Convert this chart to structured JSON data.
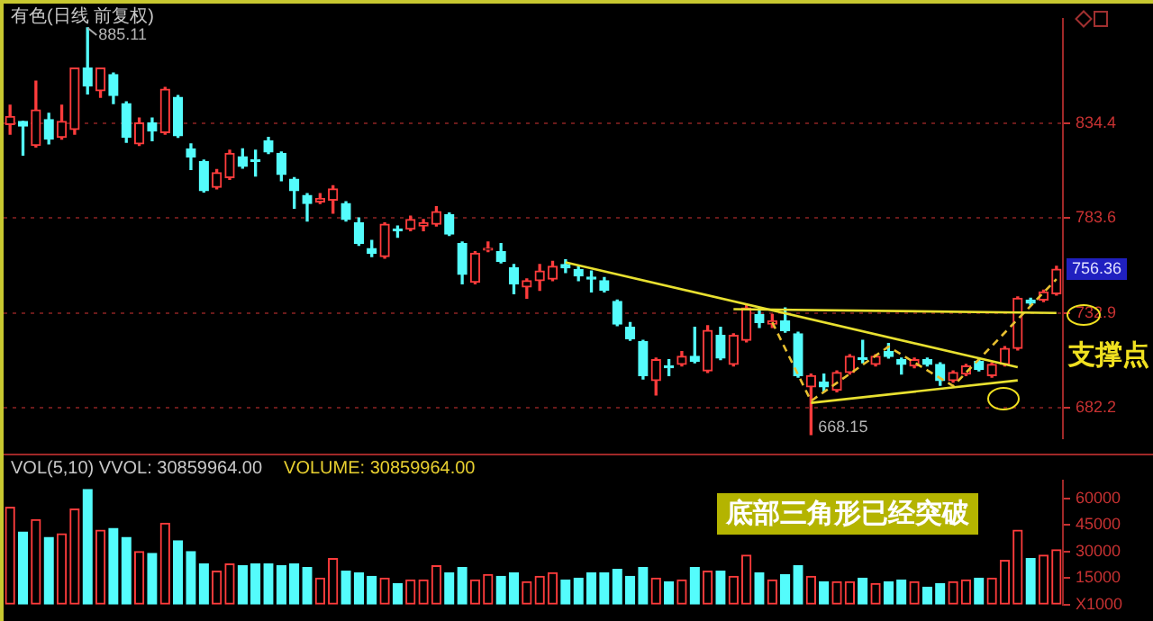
{
  "chart_data": [
    {
      "type": "candlestick",
      "title": "有色(日线 前复权)",
      "tick_labels": "y",
      "grid": "y",
      "categories": [
        null,
        null,
        null,
        null,
        null,
        null,
        null,
        null,
        null,
        null,
        null,
        null,
        null,
        null,
        null,
        null,
        null,
        null,
        null,
        null,
        null,
        null,
        null,
        null,
        null,
        null,
        null,
        null,
        null,
        null,
        null,
        null,
        null,
        null,
        null,
        null,
        null,
        null,
        null,
        null,
        null,
        null,
        null,
        null,
        null,
        null,
        null,
        null,
        null,
        null,
        null,
        null,
        null,
        null,
        null,
        null,
        null,
        null,
        null,
        null,
        null,
        null,
        null,
        null,
        null,
        null,
        null,
        null,
        null,
        null,
        null,
        null,
        null,
        null,
        null,
        null,
        null,
        null,
        null,
        null,
        null,
        null
      ],
      "ohlc": [
        [
          833.5,
          843.8,
          828.4,
          837.8
        ],
        [
          835.2,
          835.2,
          817.2,
          832.7
        ],
        [
          822.4,
          856.7,
          821.5,
          841.3
        ],
        [
          836.1,
          839.5,
          823.2,
          825.8
        ],
        [
          826.7,
          843.8,
          825.8,
          835.2
        ],
        [
          830.9,
          863.6,
          828.4,
          863.6
        ],
        [
          863.6,
          885.11,
          849.9,
          854.1
        ],
        [
          851.6,
          863.6,
          848.1,
          863.6
        ],
        [
          860.2,
          861.0,
          844.7,
          849.0
        ],
        [
          844.7,
          845.6,
          824.1,
          826.7
        ],
        [
          823.2,
          837.0,
          822.4,
          834.4
        ],
        [
          834.4,
          837.0,
          824.9,
          830.1
        ],
        [
          829.2,
          853.3,
          828.4,
          852.4
        ],
        [
          848.1,
          849.0,
          826.7,
          827.5
        ],
        [
          820.6,
          823.2,
          809.5,
          816.3
        ],
        [
          813.8,
          814.6,
          797.5,
          798.3
        ],
        [
          800.0,
          809.5,
          799.2,
          807.8
        ],
        [
          805.2,
          819.8,
          804.3,
          818.1
        ],
        [
          816.3,
          820.6,
          810.3,
          811.2
        ],
        [
          814.6,
          819.8,
          806.0,
          813.8
        ],
        [
          824.9,
          826.7,
          818.1,
          818.9
        ],
        [
          818.1,
          818.9,
          803.5,
          806.9
        ],
        [
          804.3,
          805.2,
          788.9,
          798.3
        ],
        [
          795.7,
          796.6,
          782.0,
          791.4
        ],
        [
          792.3,
          796.6,
          791.4,
          794.0
        ],
        [
          793.2,
          800.9,
          786.3,
          799.2
        ],
        [
          791.4,
          792.3,
          782.0,
          782.9
        ],
        [
          781.1,
          783.7,
          769.1,
          770.0
        ],
        [
          767.4,
          771.7,
          763.1,
          764.8
        ],
        [
          763.1,
          781.1,
          762.2,
          780.3
        ],
        [
          777.7,
          779.4,
          773.4,
          776.9
        ],
        [
          777.7,
          784.6,
          776.9,
          782.9
        ],
        [
          779.4,
          782.9,
          776.9,
          781.1
        ],
        [
          780.3,
          789.7,
          779.4,
          787.1
        ],
        [
          785.4,
          786.3,
          774.3,
          775.1
        ],
        [
          770.0,
          770.8,
          748.5,
          753.6
        ],
        [
          749.4,
          765.7,
          748.5,
          764.8
        ],
        [
          766.5,
          770.8,
          765.7,
          767.4
        ],
        [
          765.7,
          770.0,
          759.7,
          760.5
        ],
        [
          757.1,
          758.8,
          743.3,
          748.5
        ],
        [
          746.8,
          751.1,
          740.8,
          750.2
        ],
        [
          750.2,
          758.8,
          745.1,
          755.4
        ],
        [
          751.1,
          760.5,
          750.2,
          757.9
        ],
        [
          758.8,
          761.4,
          754.5,
          757.1
        ],
        [
          756.2,
          757.9,
          750.2,
          752.8
        ],
        [
          751.9,
          755.4,
          744.2,
          751.1
        ],
        [
          750.2,
          751.9,
          744.2,
          745.1
        ],
        [
          739.1,
          739.9,
          726.2,
          727.0
        ],
        [
          725.3,
          727.9,
          718.4,
          719.3
        ],
        [
          717.6,
          718.4,
          697.8,
          699.5
        ],
        [
          696.9,
          708.9,
          689.2,
          708.1
        ],
        [
          704.7,
          708.1,
          699.5,
          703.8
        ],
        [
          705.5,
          712.4,
          704.7,
          709.8
        ],
        [
          709.8,
          725.3,
          706.4,
          707.2
        ],
        [
          702.1,
          726.2,
          701.2,
          723.6
        ],
        [
          721.0,
          725.3,
          708.1,
          708.9
        ],
        [
          705.5,
          721.9,
          704.7,
          721.0
        ],
        [
          718.4,
          737.3,
          717.6,
          735.6
        ],
        [
          732.2,
          735.6,
          725.3,
          727.9
        ],
        [
          727.0,
          732.2,
          725.3,
          728.7
        ],
        [
          728.7,
          735.6,
          722.7,
          723.6
        ],
        [
          721.9,
          722.7,
          698.7,
          699.5
        ],
        [
          693.5,
          700.4,
          668.15,
          699.5
        ],
        [
          696.1,
          700.4,
          690.9,
          693.5
        ],
        [
          691.8,
          702.1,
          690.9,
          701.2
        ],
        [
          701.2,
          710.7,
          700.4,
          709.8
        ],
        [
          708.9,
          718.4,
          706.4,
          708.1
        ],
        [
          705.5,
          710.7,
          704.7,
          709.8
        ],
        [
          712.4,
          716.7,
          708.9,
          709.8
        ],
        [
          708.1,
          708.9,
          700.4,
          705.5
        ],
        [
          704.7,
          708.9,
          703.8,
          708.1
        ],
        [
          708.1,
          708.9,
          704.7,
          705.5
        ],
        [
          705.5,
          706.4,
          694.4,
          696.9
        ],
        [
          696.9,
          702.1,
          696.1,
          701.2
        ],
        [
          700.4,
          705.5,
          699.5,
          704.7
        ],
        [
          707.2,
          708.1,
          702.1,
          702.9
        ],
        [
          699.5,
          706.4,
          698.7,
          705.5
        ],
        [
          705.5,
          715.0,
          704.7,
          714.1
        ],
        [
          714.1,
          741.6,
          713.3,
          740.8
        ],
        [
          739.9,
          740.8,
          737.3,
          738.2
        ],
        [
          739.9,
          745.1,
          739.1,
          744.2
        ],
        [
          743.3,
          757.9,
          742.5,
          756.36
        ]
      ],
      "colors": [
        "#ff3c3c",
        "#54fcfc",
        "#ff3c3c",
        "#54fcfc",
        "#ff3c3c",
        "#ff3c3c",
        "#54fcfc",
        "#ff3c3c",
        "#54fcfc",
        "#54fcfc",
        "#ff3c3c",
        "#54fcfc",
        "#ff3c3c",
        "#54fcfc",
        "#54fcfc",
        "#54fcfc",
        "#ff3c3c",
        "#ff3c3c",
        "#54fcfc",
        "#54fcfc",
        "#54fcfc",
        "#54fcfc",
        "#54fcfc",
        "#54fcfc",
        "#ff3c3c",
        "#ff3c3c",
        "#54fcfc",
        "#54fcfc",
        "#54fcfc",
        "#ff3c3c",
        "#54fcfc",
        "#ff3c3c",
        "#ff3c3c",
        "#ff3c3c",
        "#54fcfc",
        "#54fcfc",
        "#ff3c3c",
        "#ff3c3c",
        "#54fcfc",
        "#54fcfc",
        "#ff3c3c",
        "#ff3c3c",
        "#ff3c3c",
        "#54fcfc",
        "#54fcfc",
        "#54fcfc",
        "#54fcfc",
        "#54fcfc",
        "#54fcfc",
        "#54fcfc",
        "#ff3c3c",
        "#54fcfc",
        "#ff3c3c",
        "#54fcfc",
        "#ff3c3c",
        "#54fcfc",
        "#ff3c3c",
        "#ff3c3c",
        "#54fcfc",
        "#ff3c3c",
        "#54fcfc",
        "#54fcfc",
        "#ff3c3c",
        "#54fcfc",
        "#ff3c3c",
        "#ff3c3c",
        "#54fcfc",
        "#ff3c3c",
        "#54fcfc",
        "#54fcfc",
        "#ff3c3c",
        "#54fcfc",
        "#54fcfc",
        "#ff3c3c",
        "#ff3c3c",
        "#54fcfc",
        "#ff3c3c",
        "#ff3c3c",
        "#ff3c3c",
        "#54fcfc",
        "#ff3c3c",
        "#ff3c3c"
      ],
      "series": [
        {
          "type": "line",
          "color": "#e8e030",
          "values": [
            null,
            null,
            null,
            null,
            null,
            null,
            null,
            null,
            null,
            null,
            null,
            null,
            null,
            null,
            null,
            null,
            null,
            null,
            null,
            null,
            null,
            null,
            null,
            null,
            null,
            null,
            null,
            null,
            null,
            null,
            null,
            null,
            null,
            null,
            null,
            null,
            null,
            null,
            null,
            null,
            null,
            null,
            null,
            760,
            null,
            null,
            null,
            null,
            null,
            null,
            null,
            null,
            null,
            null,
            null,
            null,
            null,
            null,
            null,
            null,
            null,
            null,
            null,
            null,
            null,
            null,
            null,
            null,
            null,
            null,
            null,
            null,
            null,
            null,
            null,
            null,
            null,
            null,
            704,
            null,
            null,
            null
          ]
        },
        {
          "type": "line",
          "color": "#e8e030",
          "values": [
            null,
            null,
            null,
            null,
            null,
            null,
            null,
            null,
            null,
            null,
            null,
            null,
            null,
            null,
            null,
            null,
            null,
            null,
            null,
            null,
            null,
            null,
            null,
            null,
            null,
            null,
            null,
            null,
            null,
            null,
            null,
            null,
            null,
            null,
            null,
            null,
            null,
            null,
            null,
            null,
            null,
            null,
            null,
            null,
            null,
            null,
            null,
            null,
            null,
            null,
            null,
            null,
            null,
            null,
            null,
            null,
            735,
            null,
            null,
            null,
            null,
            null,
            null,
            null,
            null,
            null,
            null,
            null,
            null,
            null,
            null,
            null,
            null,
            null,
            null,
            null,
            null,
            null,
            null,
            null,
            null,
            733
          ]
        },
        {
          "type": "line",
          "color": "#e8e030",
          "values": [
            null,
            null,
            null,
            null,
            null,
            null,
            null,
            null,
            null,
            null,
            null,
            null,
            null,
            null,
            null,
            null,
            null,
            null,
            null,
            null,
            null,
            null,
            null,
            null,
            null,
            null,
            null,
            null,
            null,
            null,
            null,
            null,
            null,
            null,
            null,
            null,
            null,
            null,
            null,
            null,
            null,
            null,
            null,
            null,
            null,
            null,
            null,
            null,
            null,
            null,
            null,
            null,
            null,
            null,
            null,
            null,
            null,
            null,
            null,
            null,
            null,
            null,
            685,
            null,
            null,
            null,
            null,
            null,
            null,
            null,
            null,
            null,
            null,
            null,
            null,
            null,
            null,
            null,
            697,
            null,
            null,
            null
          ]
        },
        {
          "type": "line",
          "color": "#e8c030",
          "line_style": "dashed",
          "values": [
            null,
            null,
            null,
            null,
            null,
            null,
            null,
            null,
            null,
            null,
            null,
            null,
            null,
            null,
            null,
            null,
            null,
            null,
            null,
            null,
            null,
            null,
            null,
            null,
            null,
            null,
            null,
            null,
            null,
            null,
            null,
            null,
            null,
            null,
            null,
            null,
            null,
            null,
            null,
            null,
            null,
            null,
            null,
            null,
            null,
            null,
            null,
            null,
            null,
            null,
            null,
            null,
            null,
            null,
            null,
            null,
            null,
            null,
            null,
            728,
            null,
            null,
            686,
            null,
            null,
            null,
            null,
            null,
            715,
            null,
            null,
            null,
            null,
            694,
            null,
            null,
            null,
            null,
            null,
            null,
            null,
            751
          ]
        }
      ],
      "ylim": [
        666,
        890
      ],
      "yticks": [
        834.4,
        783.6,
        732.9,
        682.2
      ],
      "annotations": [
        "885.11",
        "668.15",
        {
          "text": "756.36",
          "y": 756.36
        },
        "支撑点"
      ]
    },
    {
      "type": "bar",
      "title": "VOL(5,10) VVOL: 30859964.00",
      "subtitle": "VOLUME: 30859964.00",
      "tick_labels": "y",
      "categories": [
        null,
        null,
        null,
        null,
        null,
        null,
        null,
        null,
        null,
        null,
        null,
        null,
        null,
        null,
        null,
        null,
        null,
        null,
        null,
        null,
        null,
        null,
        null,
        null,
        null,
        null,
        null,
        null,
        null,
        null,
        null,
        null,
        null,
        null,
        null,
        null,
        null,
        null,
        null,
        null,
        null,
        null,
        null,
        null,
        null,
        null,
        null,
        null,
        null,
        null,
        null,
        null,
        null,
        null,
        null,
        null,
        null,
        null,
        null,
        null,
        null,
        null,
        null,
        null,
        null,
        null,
        null,
        null,
        null,
        null,
        null,
        null,
        null,
        null,
        null,
        null,
        null,
        null,
        null,
        null,
        null,
        null
      ],
      "values": [
        55000,
        41000,
        48000,
        38000,
        40000,
        54000,
        65000,
        42000,
        43000,
        38000,
        30000,
        29000,
        46000,
        36000,
        30000,
        23000,
        19000,
        23000,
        22000,
        23000,
        23000,
        22000,
        23000,
        21000,
        15000,
        26000,
        19000,
        18000,
        16000,
        15000,
        12000,
        14000,
        14000,
        22000,
        18000,
        21000,
        14000,
        17000,
        16000,
        18000,
        13000,
        16000,
        18000,
        14000,
        15000,
        18000,
        18000,
        20000,
        16000,
        21000,
        15000,
        13000,
        14000,
        21000,
        19000,
        19000,
        16000,
        28000,
        18000,
        14000,
        17000,
        22000,
        16000,
        13000,
        13000,
        13000,
        15000,
        12000,
        13000,
        14000,
        13000,
        10000,
        12000,
        13000,
        14000,
        15000,
        15000,
        25000,
        42000,
        26000,
        28000,
        31000
      ],
      "colors": [
        "#ff3c3c",
        "#54fcfc",
        "#ff3c3c",
        "#54fcfc",
        "#ff3c3c",
        "#ff3c3c",
        "#54fcfc",
        "#ff3c3c",
        "#54fcfc",
        "#54fcfc",
        "#ff3c3c",
        "#54fcfc",
        "#ff3c3c",
        "#54fcfc",
        "#54fcfc",
        "#54fcfc",
        "#ff3c3c",
        "#ff3c3c",
        "#54fcfc",
        "#54fcfc",
        "#54fcfc",
        "#54fcfc",
        "#54fcfc",
        "#54fcfc",
        "#ff3c3c",
        "#ff3c3c",
        "#54fcfc",
        "#54fcfc",
        "#54fcfc",
        "#ff3c3c",
        "#54fcfc",
        "#ff3c3c",
        "#ff3c3c",
        "#ff3c3c",
        "#54fcfc",
        "#54fcfc",
        "#ff3c3c",
        "#ff3c3c",
        "#54fcfc",
        "#54fcfc",
        "#ff3c3c",
        "#ff3c3c",
        "#ff3c3c",
        "#54fcfc",
        "#54fcfc",
        "#54fcfc",
        "#54fcfc",
        "#54fcfc",
        "#54fcfc",
        "#54fcfc",
        "#ff3c3c",
        "#54fcfc",
        "#ff3c3c",
        "#54fcfc",
        "#ff3c3c",
        "#54fcfc",
        "#ff3c3c",
        "#ff3c3c",
        "#54fcfc",
        "#ff3c3c",
        "#54fcfc",
        "#54fcfc",
        "#ff3c3c",
        "#54fcfc",
        "#ff3c3c",
        "#ff3c3c",
        "#54fcfc",
        "#ff3c3c",
        "#54fcfc",
        "#54fcfc",
        "#ff3c3c",
        "#54fcfc",
        "#54fcfc",
        "#ff3c3c",
        "#ff3c3c",
        "#54fcfc",
        "#ff3c3c",
        "#ff3c3c",
        "#ff3c3c",
        "#54fcfc",
        "#ff3c3c",
        "#ff3c3c"
      ],
      "ylim": [
        0,
        70000
      ],
      "yticks": [
        {
          "value": 0,
          "label": "X1000"
        },
        15000,
        30000,
        45000,
        60000
      ],
      "annotations": [
        "底部三角形已经突破"
      ]
    }
  ]
}
